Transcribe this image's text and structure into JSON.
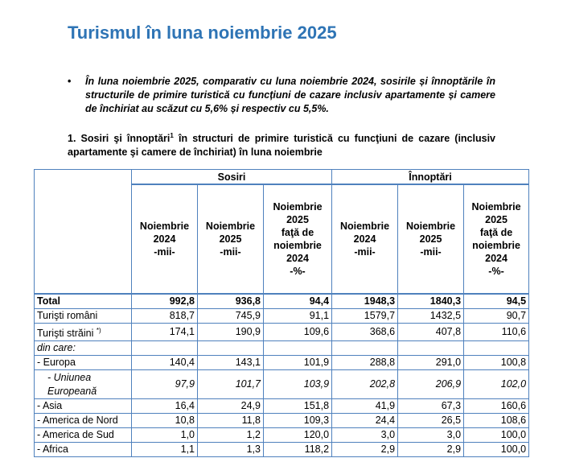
{
  "title": "Turismul în luna noiembrie 2025",
  "bullet": "În luna noiembrie 2025, comparativ cu luna noiembrie 2024, sosirile și înnoptările în structurile de primire turistică cu funcțiuni de cazare inclusiv apartamente și camere de închiriat au scăzut cu 5,6% și respectiv cu 5,5%.",
  "table_title": {
    "text": "1. Sosiri şi înnoptări",
    "footnote": "1",
    "rest": " în structuri de primire turistică cu funcţiuni de cazare (inclusiv apartamente şi camere de închiriat) în luna noiembrie"
  },
  "table": {
    "groups": [
      "Sosiri",
      "Înnoptări"
    ],
    "columns": [
      [
        "Noiembrie",
        "2024",
        "-mii-"
      ],
      [
        "Noiembrie",
        "2025",
        "-mii-"
      ],
      [
        "Noiembrie",
        "2025",
        "faţă de",
        "noiembrie",
        "2024",
        "-%-"
      ],
      [
        "Noiembrie",
        "2024",
        "-mii-"
      ],
      [
        "Noiembrie",
        "2025",
        "-mii-"
      ],
      [
        "Noiembrie",
        "2025",
        "faţă de",
        "noiembrie",
        "2024",
        "-%-"
      ]
    ],
    "rows": [
      {
        "label": "Total",
        "values": [
          "992,8",
          "936,8",
          "94,4",
          "1948,3",
          "1840,3",
          "94,5"
        ]
      },
      {
        "label": "Turişti români",
        "values": [
          "818,7",
          "745,9",
          "91,1",
          "1579,7",
          "1432,5",
          "90,7"
        ]
      },
      {
        "label": "Turişti străini",
        "note": "*)",
        "values": [
          "174,1",
          "190,9",
          "109,6",
          "368,6",
          "407,8",
          "110,6"
        ]
      },
      {
        "label": "din care:"
      },
      {
        "label": "- Europa",
        "values": [
          "140,4",
          "143,1",
          "101,9",
          "288,8",
          "291,0",
          "100,8"
        ]
      },
      {
        "label": "- Uniunea Europeană",
        "values": [
          "97,9",
          "101,7",
          "103,9",
          "202,8",
          "206,9",
          "102,0"
        ]
      },
      {
        "label": "- Asia",
        "values": [
          "16,4",
          "24,9",
          "151,8",
          "41,9",
          "67,3",
          "160,6"
        ]
      },
      {
        "label": "- America de Nord",
        "values": [
          "10,8",
          "11,8",
          "109,3",
          "24,4",
          "26,5",
          "108,6"
        ]
      },
      {
        "label": "- America de Sud",
        "values": [
          "1,0",
          "1,2",
          "120,0",
          "3,0",
          "3,0",
          "100,0"
        ]
      },
      {
        "label": "- Africa",
        "values": [
          "1,1",
          "1,3",
          "118,2",
          "2,9",
          "2,9",
          "100,0"
        ]
      }
    ]
  }
}
